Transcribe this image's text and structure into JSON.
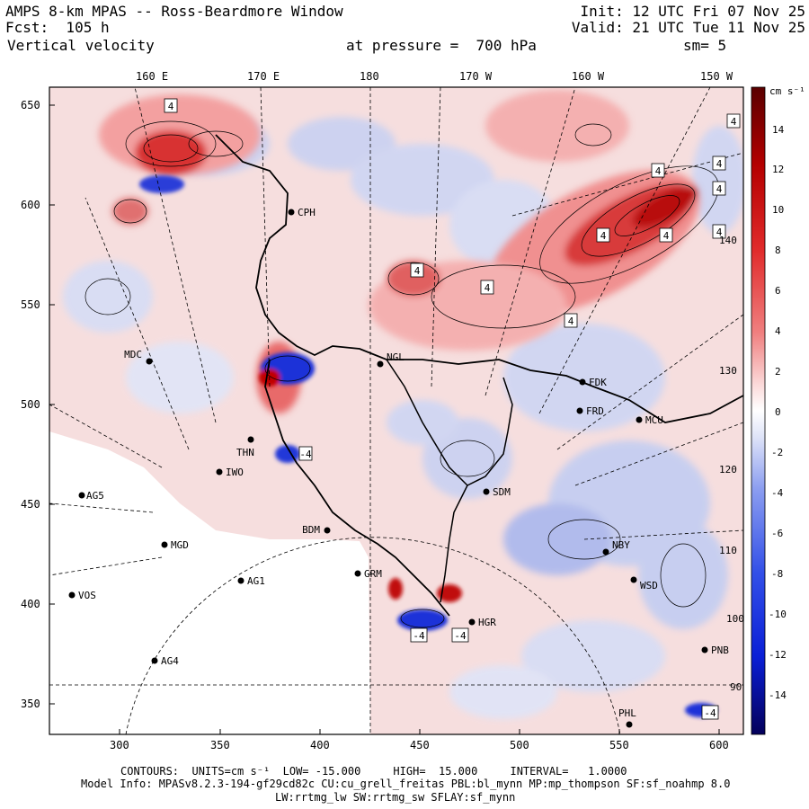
{
  "header": {
    "title": "AMPS 8-km MPAS -- Ross-Beardmore Window",
    "fcst": "Fcst:  105 h",
    "variable": "Vertical velocity",
    "init": "Init: 12 UTC Fri 07 Nov 25",
    "valid": "Valid: 21 UTC Tue 11 Nov 25",
    "pressure": "at pressure =  700 hPa",
    "smooth": "sm= 5"
  },
  "top_ticks": [
    "160 E",
    "170 E",
    "180",
    "170 W",
    "160 W",
    "150 W"
  ],
  "x_ticks": [
    "300",
    "350",
    "400",
    "450",
    "500",
    "550",
    "600"
  ],
  "y_ticks": [
    "650",
    "600",
    "550",
    "500",
    "450",
    "400",
    "350"
  ],
  "inner_lon_labels": [
    "140 W",
    "130 W",
    "120 W",
    "110 W",
    "100 W",
    "90 W"
  ],
  "colorbar": {
    "units": "cm s⁻¹",
    "labels": [
      "14",
      "12",
      "10",
      "8",
      "6",
      "4",
      "2",
      "0",
      "-2",
      "-4",
      "-6",
      "-8",
      "-10",
      "-12",
      "-14"
    ],
    "colors": {
      "max": "#6e0000",
      "strong_up": "#c80000",
      "up": "#e85a5a",
      "weak_up": "#f7c9c9",
      "zero": "#ffffff",
      "weak_down": "#cdd6f4",
      "down": "#6f85e6",
      "strong_down": "#0a1fd6",
      "min": "#050060"
    }
  },
  "stations": [
    "MDC",
    "NGL",
    "FDK",
    "FRD",
    "MCU",
    "CPH",
    "AG5",
    "IWO",
    "THN",
    "SDM",
    "BDM",
    "MGD",
    "AG1",
    "GRM",
    "NBY",
    "VOS",
    "WSD",
    "HGR",
    "PNB",
    "AG4",
    "PHL"
  ],
  "contour_markers": [
    "4",
    "4",
    "4",
    "4",
    "4",
    "4",
    "4",
    "4",
    "4",
    "4",
    "4",
    "-4",
    "-4",
    "-4",
    "-4"
  ],
  "footer": {
    "contours": "CONTOURS:  UNITS=cm s⁻¹  LOW= -15.000     HIGH=  15.000     INTERVAL=   1.0000",
    "model_info": "Model Info: MPASv8.2.3-194-gf29cd82c CU:cu_grell_freitas PBL:bl_mynn MP:mp_thompson SF:sf_noahmp 8.0",
    "model_info2": "LW:rrtmg_lw SW:rrtmg_sw SFLAY:sf_mynn"
  }
}
